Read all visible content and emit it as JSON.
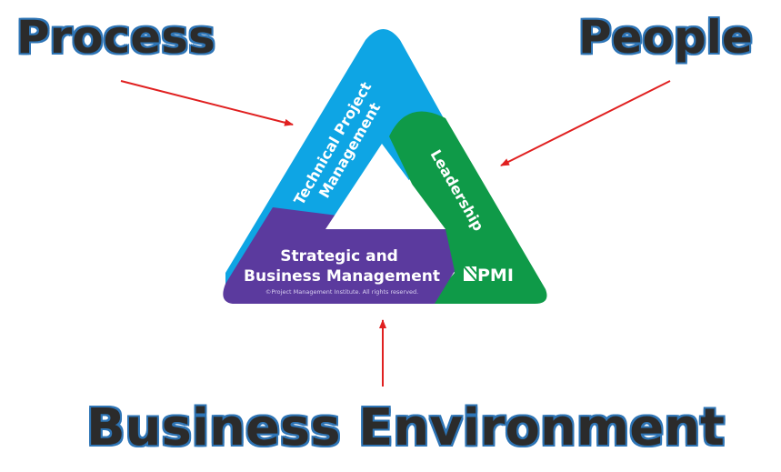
{
  "labels": {
    "process": "Process",
    "people": "People",
    "business_environment": "Business Environment"
  },
  "triangle": {
    "technical": [
      "Technical Project",
      "Management"
    ],
    "leadership": "Leadership",
    "strategic": [
      "Strategic and",
      "Business Management"
    ],
    "copyright": "©Project Management Institute. All rights reserved.",
    "logo": "PMI"
  },
  "colors": {
    "technical": "#0ea5e4",
    "leadership": "#0f9a48",
    "strategic": "#5b3a9e",
    "arrows": "#e02020",
    "label_text": "#2b2b2b",
    "label_outline": "#2e75b6"
  }
}
